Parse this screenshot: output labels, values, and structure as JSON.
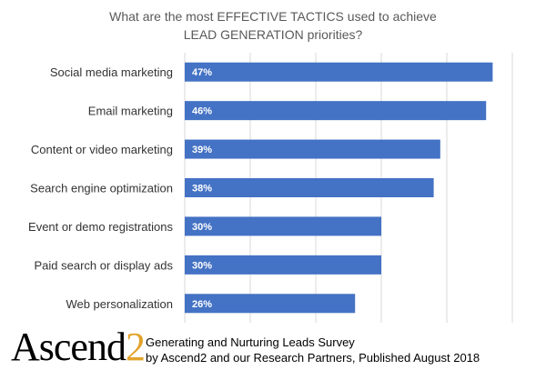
{
  "chart_data": {
    "type": "bar",
    "orientation": "horizontal",
    "title": "What are the most EFFECTIVE TACTICS used to achieve LEAD GENERATION priorities?",
    "categories": [
      "Social media marketing",
      "Email marketing",
      "Content or video marketing",
      "Search engine optimization",
      "Event or demo registrations",
      "Paid search or display ads",
      "Web personalization"
    ],
    "values": [
      47,
      46,
      39,
      38,
      30,
      30,
      26
    ],
    "value_labels": [
      "47%",
      "46%",
      "39%",
      "38%",
      "30%",
      "30%",
      "26%"
    ],
    "xlim": [
      0,
      50
    ],
    "grid": true,
    "bar_color": "#4472c4"
  },
  "footer": {
    "logo_text": "Ascend",
    "logo_suffix": "2",
    "line1": "Generating and Nurturing Leads Survey",
    "line2": "by Ascend2 and our Research Partners, Published August 2018"
  }
}
